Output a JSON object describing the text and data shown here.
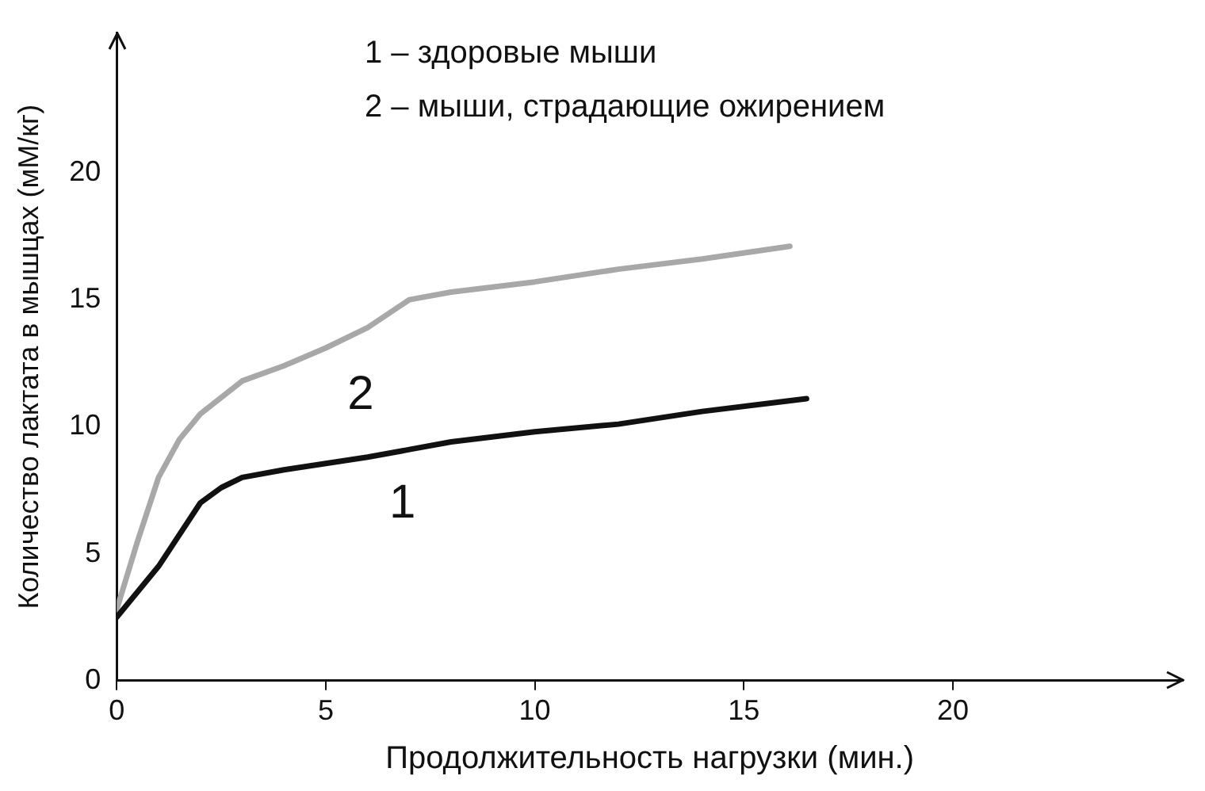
{
  "chart_data": {
    "type": "line",
    "xlabel": "Продолжительность нагрузки (мин.)",
    "ylabel": "Количество лактата в мышцах (мМ/кг)",
    "series": [
      {
        "name": "1",
        "color": "#111111",
        "x": [
          0,
          1,
          2,
          2.5,
          3,
          4,
          6,
          7,
          8,
          10,
          12,
          14,
          16.5
        ],
        "values": [
          2.5,
          4.5,
          7,
          7.6,
          8,
          8.3,
          8.8,
          9.1,
          9.4,
          9.8,
          10.1,
          10.6,
          11.1
        ]
      },
      {
        "name": "2",
        "color": "#a8a8a8",
        "x": [
          0,
          0.5,
          1,
          1.5,
          2,
          3,
          4,
          5,
          6,
          7,
          8,
          10,
          12,
          14,
          16.1
        ],
        "values": [
          2.8,
          5.5,
          8,
          9.5,
          10.5,
          11.8,
          12.4,
          13.1,
          13.9,
          15,
          15.3,
          15.7,
          16.2,
          16.6,
          17.1
        ]
      }
    ],
    "annotations": [
      "1 – здоровые мыши",
      "2 – мыши, страдающие ожирением"
    ],
    "xlim": [
      0,
      25.5
    ],
    "ylim": [
      0,
      25.5
    ],
    "xticks": [
      0,
      5,
      10,
      15,
      20
    ],
    "yticks": [
      0,
      5,
      10,
      15,
      20
    ],
    "grid": false,
    "legend": false,
    "marker": "none",
    "line_style": "solid"
  }
}
